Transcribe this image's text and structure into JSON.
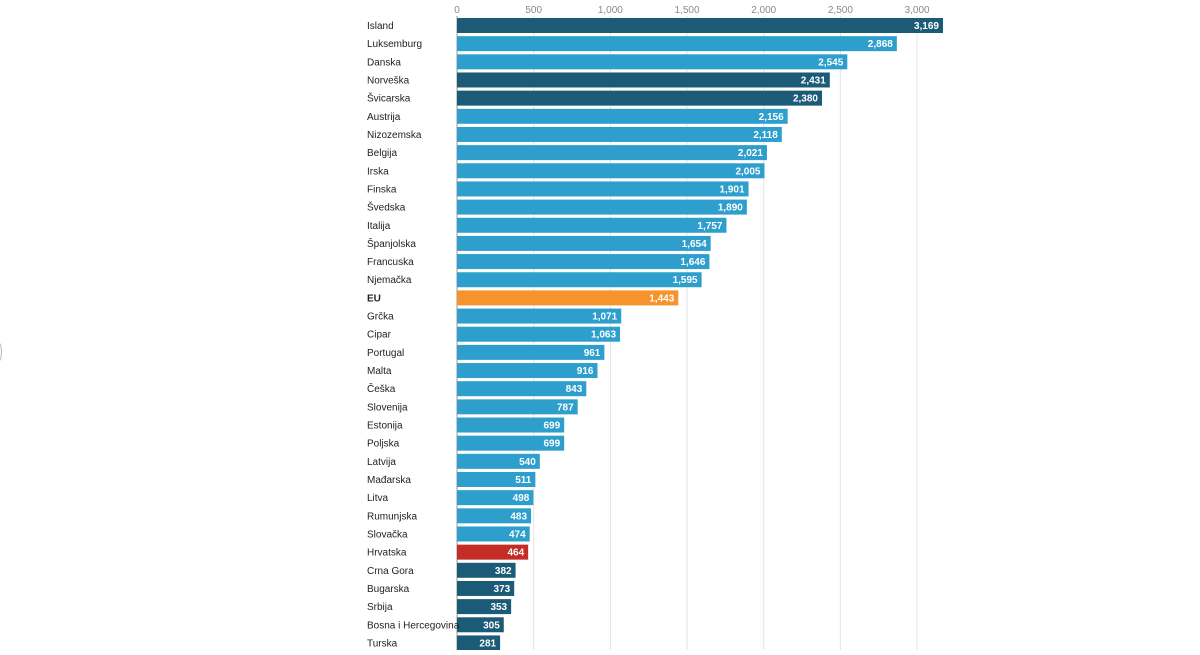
{
  "chart_data": {
    "type": "bar",
    "orientation": "horizontal",
    "title": "",
    "xlabel": "",
    "ylabel": "",
    "xlim": [
      0,
      3169
    ],
    "x_ticks": [
      0,
      500,
      1000,
      1500,
      2000,
      2500,
      3000
    ],
    "x_tick_labels": [
      "0",
      "500",
      "1,000",
      "1,500",
      "2,000",
      "2,500",
      "3,000"
    ],
    "grid": true,
    "legend": "none",
    "colors": {
      "dark": "#1c5b78",
      "light": "#2e9fcd",
      "eu": "#f7932c",
      "highlight": "#c62c26"
    },
    "categories": [
      "Island",
      "Luksemburg",
      "Danska",
      "Norveška",
      "Švicarska",
      "Austrija",
      "Nizozemska",
      "Belgija",
      "Irska",
      "Finska",
      "Švedska",
      "Italija",
      "Španjolska",
      "Francuska",
      "Njemačka",
      "EU",
      "Grčka",
      "Cipar",
      "Portugal",
      "Malta",
      "Češka",
      "Slovenija",
      "Estonija",
      "Poljska",
      "Latvija",
      "Mađarska",
      "Litva",
      "Rumunjska",
      "Slovačka",
      "Hrvatska",
      "Crna Gora",
      "Bugarska",
      "Srbija",
      "Bosna i Hercegovina",
      "Turska"
    ],
    "values": [
      3169,
      2868,
      2545,
      2431,
      2380,
      2156,
      2118,
      2021,
      2005,
      1901,
      1890,
      1757,
      1654,
      1646,
      1595,
      1443,
      1071,
      1063,
      961,
      916,
      843,
      787,
      699,
      699,
      540,
      511,
      498,
      483,
      474,
      464,
      382,
      373,
      353,
      305,
      281
    ],
    "value_labels": [
      "3,169",
      "2,868",
      "2,545",
      "2,431",
      "2,380",
      "2,156",
      "2,118",
      "2,021",
      "2,005",
      "1,901",
      "1,890",
      "1,757",
      "1,654",
      "1,646",
      "1,595",
      "1,443",
      "1,071",
      "1,063",
      "961",
      "916",
      "843",
      "787",
      "699",
      "699",
      "540",
      "511",
      "498",
      "483",
      "474",
      "464",
      "382",
      "373",
      "353",
      "305",
      "281"
    ],
    "bar_colors": [
      "dark",
      "light",
      "light",
      "dark",
      "dark",
      "light",
      "light",
      "light",
      "light",
      "light",
      "light",
      "light",
      "light",
      "light",
      "light",
      "eu",
      "light",
      "light",
      "light",
      "light",
      "light",
      "light",
      "light",
      "light",
      "light",
      "light",
      "light",
      "light",
      "light",
      "highlight",
      "dark",
      "dark",
      "dark",
      "dark",
      "dark"
    ],
    "bold_categories": [
      "EU"
    ]
  }
}
